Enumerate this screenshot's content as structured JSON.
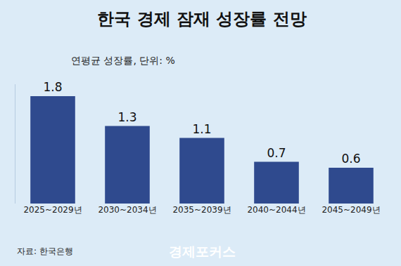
{
  "chart_data": {
    "type": "bar",
    "title": "한국 경제 잠재 성장률 전망",
    "subtitle": "연평균 성장률, 단위: %",
    "categories": [
      "2025~2029년",
      "2030~2034년",
      "2035~2039년",
      "2040~2044년",
      "2045~2049년"
    ],
    "values": [
      1.8,
      1.3,
      1.1,
      0.7,
      0.6
    ],
    "color": "#2f4a8e",
    "ylim": [
      0,
      2.0
    ],
    "grid": false,
    "data_labels": true,
    "tick_labels": "x",
    "source": "자료: 한국은행",
    "credit": "경제포커스"
  }
}
